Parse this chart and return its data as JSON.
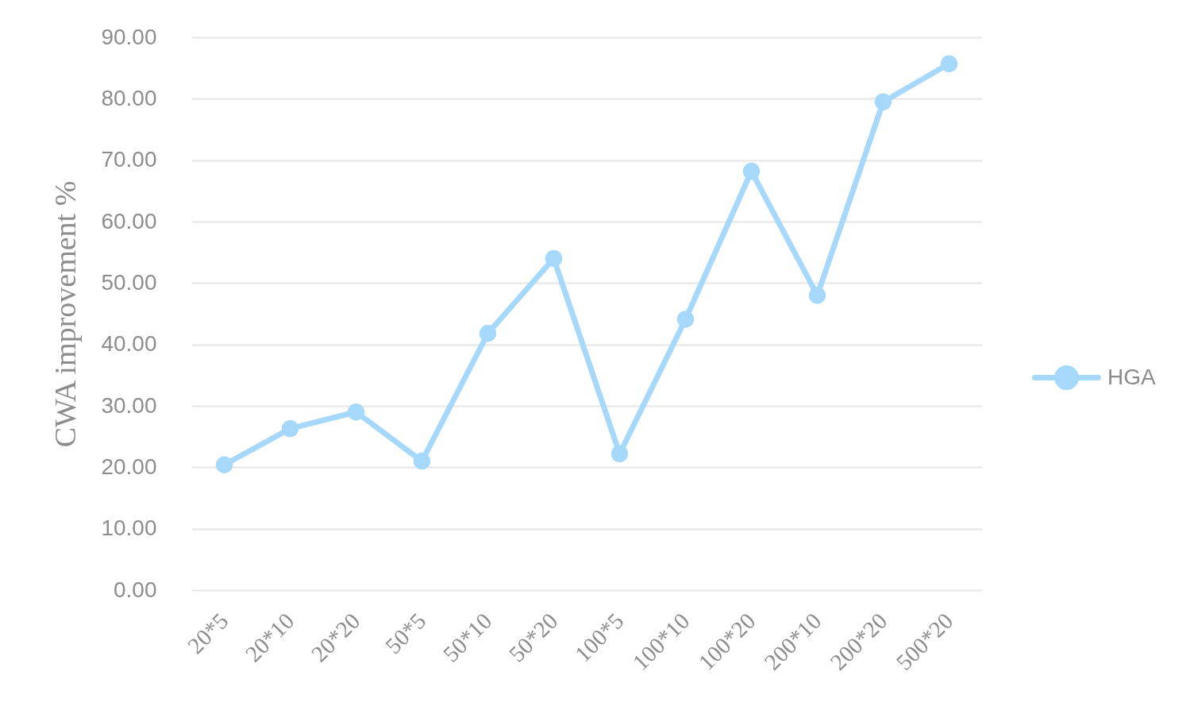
{
  "chart_data": {
    "type": "line",
    "ylabel": "CWA improvement %",
    "categories": [
      "20*5",
      "20*10",
      "20*20",
      "50*5",
      "50*10",
      "50*20",
      "100*5",
      "100*10",
      "100*20",
      "200*10",
      "200*20",
      "500*20"
    ],
    "series": [
      {
        "name": "HGA",
        "color": "#a6d8fb",
        "values": [
          20.4,
          26.3,
          29.0,
          21.0,
          41.8,
          54.0,
          22.2,
          44.1,
          68.2,
          48.0,
          79.5,
          85.7
        ]
      }
    ],
    "ylim": [
      0,
      90
    ],
    "yticks": [
      {
        "value": 0,
        "label": "0.00"
      },
      {
        "value": 10,
        "label": "10.00"
      },
      {
        "value": 20,
        "label": "20.00"
      },
      {
        "value": 30,
        "label": "30.00"
      },
      {
        "value": 40,
        "label": "40.00"
      },
      {
        "value": 50,
        "label": "50.00"
      },
      {
        "value": 60,
        "label": "60.00"
      },
      {
        "value": 70,
        "label": "70.00"
      },
      {
        "value": 80,
        "label": "80.00"
      },
      {
        "value": 90,
        "label": "90.00"
      }
    ],
    "grid": "y",
    "legend": "right",
    "marker": "circle",
    "line_style": "solid"
  }
}
